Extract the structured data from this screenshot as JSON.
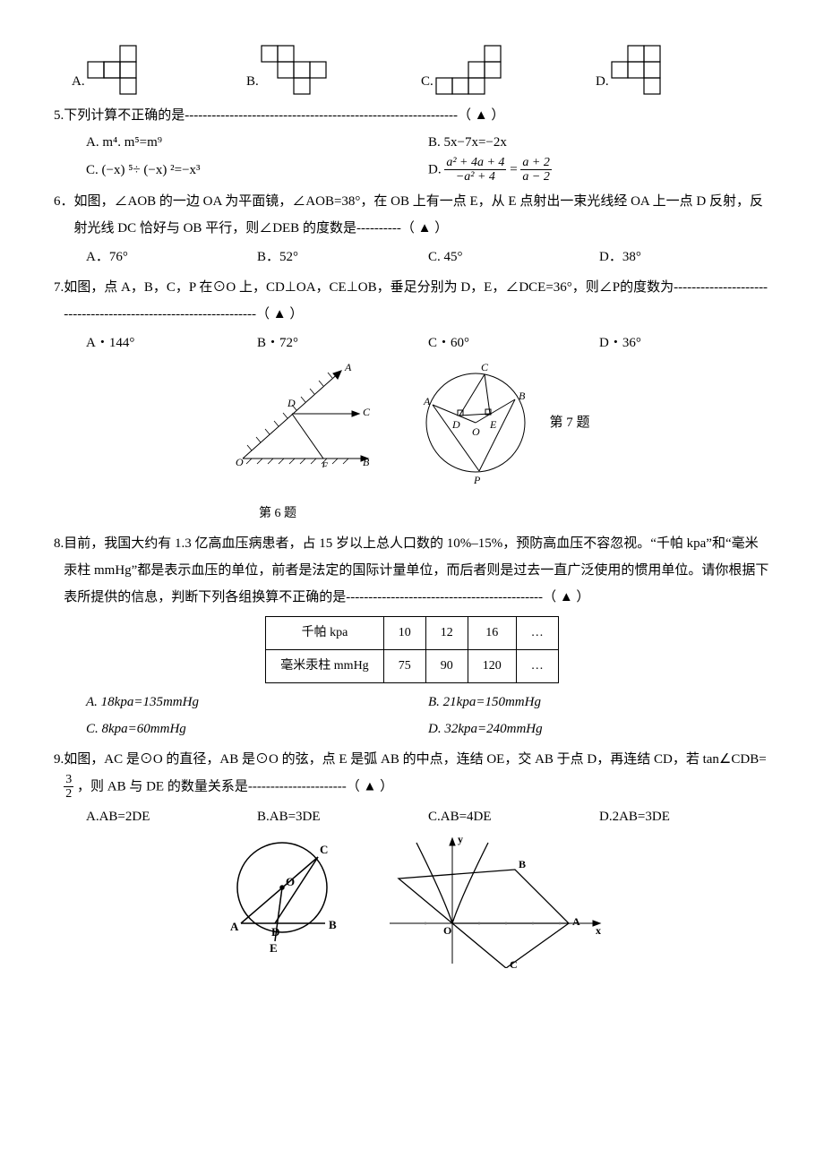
{
  "q4": {
    "opts": [
      "A.",
      "B.",
      "C.",
      "D."
    ],
    "nets": {
      "A": {
        "cells": [
          [
            1,
            1
          ],
          [
            0,
            2
          ],
          [
            1,
            0
          ],
          [
            1,
            1
          ],
          [
            1,
            2
          ],
          [
            2,
            2
          ]
        ],
        "cols": 3,
        "rows": 3,
        "size": 18
      },
      "B": {
        "cells": [
          [
            0,
            0
          ],
          [
            0,
            1
          ],
          [
            1,
            1
          ],
          [
            1,
            2
          ],
          [
            1,
            3
          ],
          [
            2,
            2
          ]
        ],
        "cols": 4,
        "rows": 3,
        "size": 18
      },
      "C": {
        "cells": [
          [
            0,
            3
          ],
          [
            1,
            2
          ],
          [
            1,
            3
          ],
          [
            2,
            0
          ],
          [
            2,
            1
          ],
          [
            2,
            2
          ]
        ],
        "cols": 4,
        "rows": 3,
        "size": 18
      },
      "D": {
        "cells": [
          [
            0,
            1
          ],
          [
            0,
            2
          ],
          [
            1,
            0
          ],
          [
            1,
            1
          ],
          [
            1,
            2
          ],
          [
            2,
            2
          ]
        ],
        "cols": 3,
        "rows": 3,
        "size": 18
      }
    }
  },
  "q5": {
    "num": "5.",
    "text_a": "下列计算不正确的是",
    "optA": "A. m⁴. m⁵=m⁹",
    "optB": "B. 5x−7x=−2x",
    "optC": "C. (−x) ⁵÷ (−x) ²=−x³",
    "optD_label": "D.",
    "optD_num": "a² + 4a + 4",
    "optD_den": "−a² + 4",
    "optD_eq": " = ",
    "optD_num2": "a + 2",
    "optD_den2": "a − 2"
  },
  "q6": {
    "num": "6．",
    "text": "如图，∠AOB 的一边 OA 为平面镜，∠AOB=38°，在 OB 上有一点 E，从 E 点射出一束光线经 OA 上一点 D 反射，反射光线 DC 恰好与 OB 平行，则∠DEB 的度数是",
    "opts": [
      "A．76°",
      "B．52°",
      "C. 45°",
      "D．38°"
    ],
    "caption": "第 6 题"
  },
  "q7": {
    "num": "7.",
    "text": "如图，点 A，B，C，P 在⊙O 上，CD⊥OA，CE⊥OB，垂足分别为 D，E，∠DCE=36°，则∠P的度数为",
    "opts": [
      "A・144°",
      "B・72°",
      "C・60°",
      "D・36°"
    ],
    "caption": "第 7 题"
  },
  "q8": {
    "num": "8.",
    "text": "目前，我国大约有 1.3 亿高血压病患者，占 15 岁以上总人口数的 10%–15%，预防高血压不容忽视。“千帕 kpa”和“毫米汞柱 mmHg”都是表示血压的单位，前者是法定的国际计量单位，而后者则是过去一直广泛使用的惯用单位。请你根据下表所提供的信息，判断下列各组换算不正确的是",
    "table": {
      "header": [
        "千帕 kpa",
        "10",
        "12",
        "16",
        "…"
      ],
      "row": [
        "毫米汞柱 mmHg",
        "75",
        "90",
        "120",
        "…"
      ]
    },
    "optA": "A. 18kpa=135mmHg",
    "optB": "B. 21kpa=150mmHg",
    "optC": "C. 8kpa=60mmHg",
    "optD": "D. 32kpa=240mmHg"
  },
  "q9": {
    "num": "9.",
    "text_a": "如图，AC 是⊙O 的直径，AB 是⊙O 的弦，点 E 是弧 AB 的中点，连结 OE，交 AB 于点 D，再连结 CD，若 tan∠CDB=",
    "frac_num": "3",
    "frac_den": "2",
    "text_b": "，则 AB 与 DE 的数量关系是",
    "opts": [
      "A.AB=2DE",
      "B.AB=3DE",
      "C.AB=4DE",
      "D.2AB=3DE"
    ]
  },
  "blank_marker": "（ ▲ ）"
}
